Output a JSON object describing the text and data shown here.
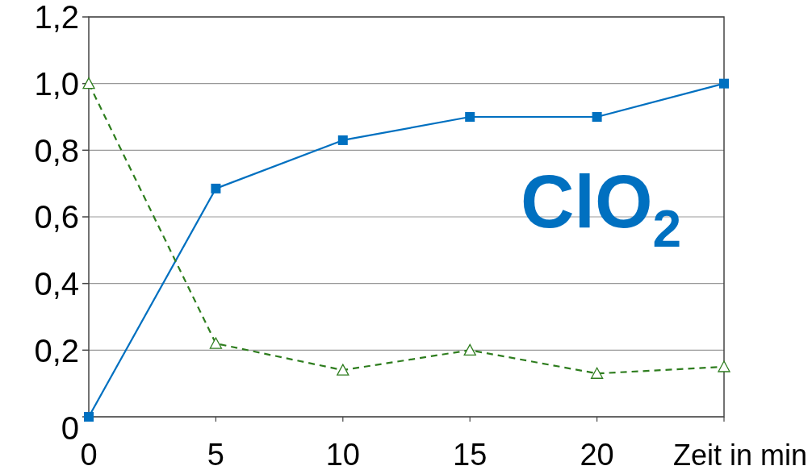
{
  "chart_data": {
    "type": "line",
    "categories": [
      "0",
      "5",
      "10",
      "15",
      "20",
      null
    ],
    "xlabel": "Zeit in min",
    "series": [
      {
        "color": "#0070c0",
        "values": [
          0,
          0.685,
          0.83,
          0.9,
          0.9,
          1.0
        ],
        "marker": "square",
        "line_style": "solid"
      },
      {
        "color": "#2e7d1e",
        "values": [
          1.0,
          0.22,
          0.14,
          0.2,
          0.13,
          0.15
        ],
        "marker": "triangle",
        "line_style": "dashed"
      }
    ],
    "ylim": [
      0,
      1.2
    ],
    "yticks": [
      0,
      {
        "value": 0.2,
        "label": "0,2"
      },
      {
        "value": 0.4,
        "label": "0,4"
      },
      {
        "value": 0.6,
        "label": "0,6"
      },
      {
        "value": 0.8,
        "label": "0,8"
      },
      {
        "value": 1.0,
        "label": "1,0"
      },
      {
        "value": 1.2,
        "label": "1,2"
      }
    ],
    "grid": "y",
    "annotations": [
      "ClO$_{2}$"
    ]
  }
}
